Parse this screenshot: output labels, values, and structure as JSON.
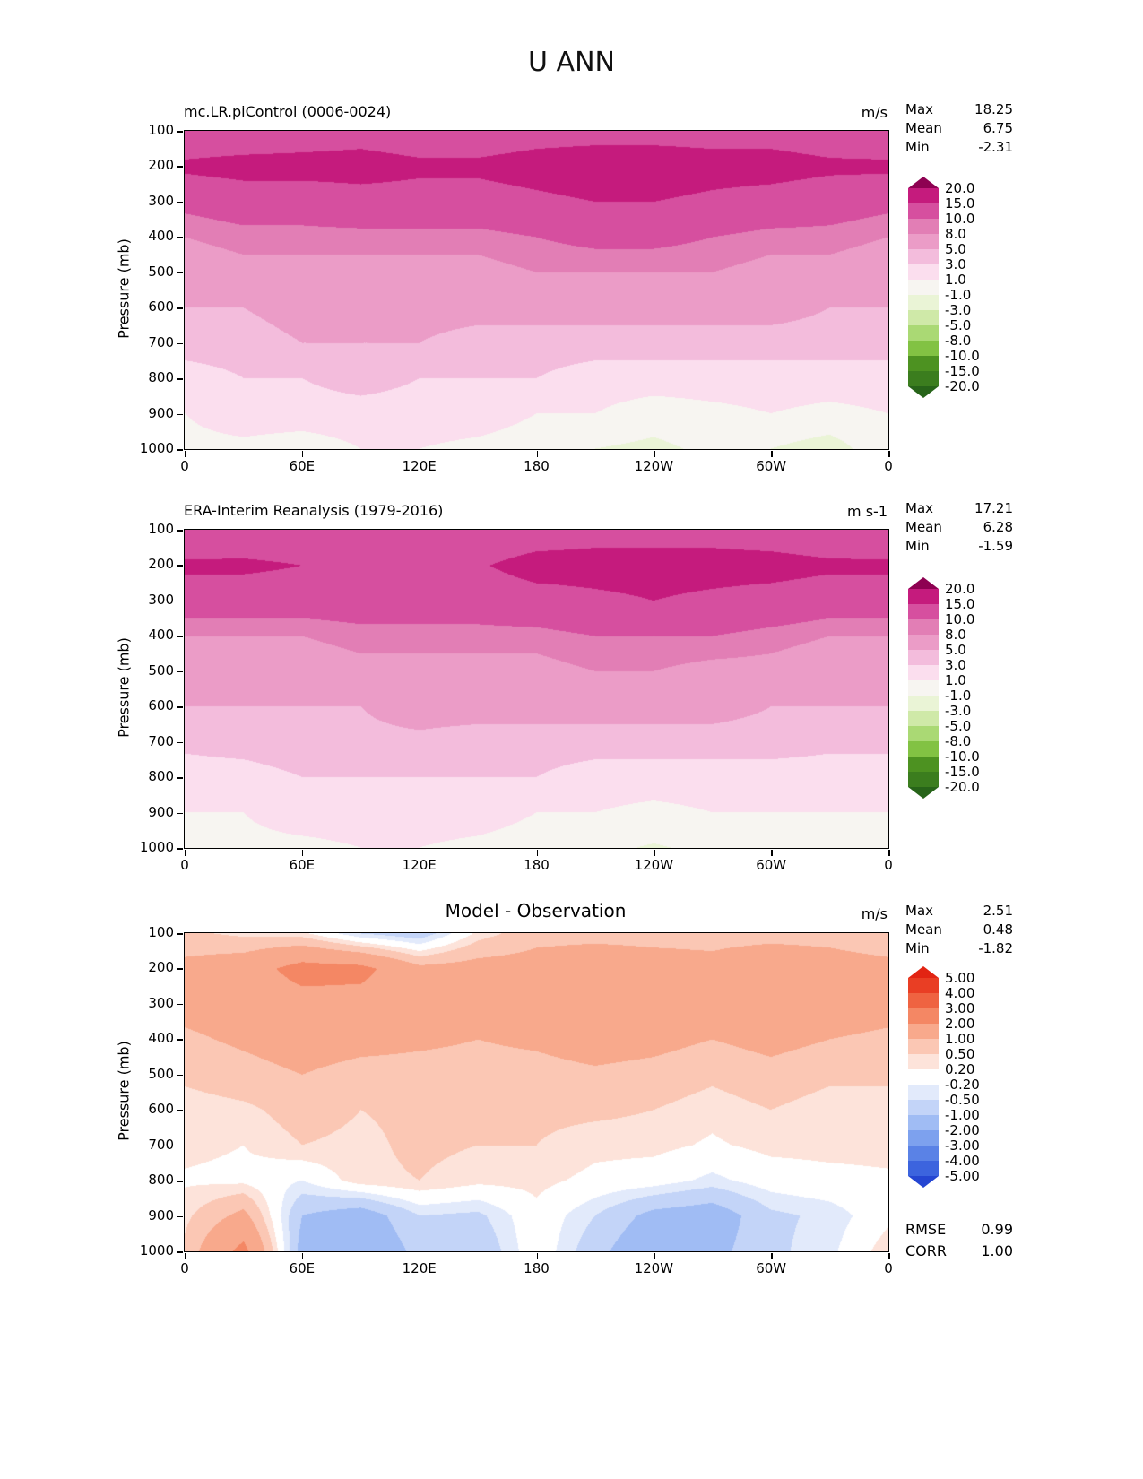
{
  "title": "U ANN",
  "chart_data": {
    "type": "heatmap",
    "subtype": "filled-contour-pressure-longitude",
    "xlabel": "",
    "ylabel": "Pressure (mb)",
    "x_ticks": [
      "0",
      "60E",
      "120E",
      "180",
      "120W",
      "60W",
      "0"
    ],
    "y_ticks": [
      "100",
      "200",
      "300",
      "400",
      "500",
      "600",
      "700",
      "800",
      "900",
      "1000"
    ],
    "lons": [
      0,
      30,
      60,
      90,
      120,
      150,
      180,
      210,
      240,
      270,
      300,
      330,
      360
    ],
    "pressures": [
      100,
      200,
      300,
      400,
      500,
      600,
      700,
      800,
      900,
      1000
    ],
    "panels": [
      {
        "title": "mc.LR.piControl (0006-0024)",
        "units": "m/s",
        "stats": [
          {
            "label": "Max",
            "value": "18.25"
          },
          {
            "label": "Mean",
            "value": "6.75"
          },
          {
            "label": "Min",
            "value": "-2.31"
          }
        ],
        "levels": [
          -20,
          -15,
          -10,
          -8,
          -5,
          -3,
          -1,
          1,
          3,
          5,
          8,
          10,
          15,
          20
        ],
        "colors": [
          "#276419",
          "#3b7d1e",
          "#4d9221",
          "#82c243",
          "#aad974",
          "#cfe9a8",
          "#eaf4d6",
          "#f7f5f1",
          "#fbdeee",
          "#f3bcdc",
          "#eb9cc7",
          "#e27eb5",
          "#d64f9f",
          "#c51b7d",
          "#8e0152"
        ],
        "colorbar_labels": [
          "20.0",
          "15.0",
          "10.0",
          "8.0",
          "5.0",
          "3.0",
          "1.0",
          "-1.0",
          "-3.0",
          "-5.0",
          "-8.0",
          "-10.0",
          "-15.0",
          "-20.0"
        ],
        "values": [
          [
            11,
            11,
            12,
            13,
            12,
            12,
            13,
            13,
            13,
            13,
            13,
            12,
            11
          ],
          [
            16,
            17,
            17,
            17,
            16,
            16,
            17,
            18,
            18,
            17,
            17,
            16,
            16
          ],
          [
            11,
            12,
            12,
            13,
            13,
            13,
            14,
            15,
            15,
            14,
            13,
            12,
            11
          ],
          [
            8,
            9,
            9,
            9,
            9,
            9,
            10,
            11,
            11,
            10,
            9,
            9,
            8
          ],
          [
            6,
            7,
            7,
            7,
            7,
            7,
            8,
            8,
            8,
            8,
            7,
            7,
            6
          ],
          [
            5,
            5,
            6,
            6,
            6,
            6,
            6,
            6,
            6,
            6,
            6,
            5,
            5
          ],
          [
            4,
            4,
            5,
            5,
            5,
            4,
            4,
            4,
            4,
            4,
            4,
            4,
            4
          ],
          [
            2,
            3,
            3,
            4,
            3,
            3,
            3,
            2,
            2,
            2,
            2,
            2,
            2
          ],
          [
            1,
            2,
            2,
            2,
            2,
            2,
            1,
            1,
            0,
            0.5,
            1,
            0.5,
            1
          ],
          [
            0.5,
            0.5,
            0,
            1,
            1,
            0.5,
            0,
            -1,
            -1.5,
            -0.5,
            -1,
            -2,
            0.5
          ]
        ]
      },
      {
        "title": "ERA-Interim Reanalysis (1979-2016)",
        "units": "m s-1",
        "stats": [
          {
            "label": "Max",
            "value": "17.21"
          },
          {
            "label": "Mean",
            "value": "6.28"
          },
          {
            "label": "Min",
            "value": "-1.59"
          }
        ],
        "levels": [
          -20,
          -15,
          -10,
          -8,
          -5,
          -3,
          -1,
          1,
          3,
          5,
          8,
          10,
          15,
          20
        ],
        "colors": [
          "#276419",
          "#3b7d1e",
          "#4d9221",
          "#82c243",
          "#aad974",
          "#cfe9a8",
          "#eaf4d6",
          "#f7f5f1",
          "#fbdeee",
          "#f3bcdc",
          "#eb9cc7",
          "#e27eb5",
          "#d64f9f",
          "#c51b7d",
          "#8e0152"
        ],
        "colorbar_labels": [
          "20.0",
          "15.0",
          "10.0",
          "8.0",
          "5.0",
          "3.0",
          "1.0",
          "-1.0",
          "-3.0",
          "-5.0",
          "-8.0",
          "-10.0",
          "-15.0",
          "-20.0"
        ],
        "values": [
          [
            10,
            11,
            11,
            11,
            10,
            11,
            12,
            13,
            13,
            13,
            12,
            11,
            10
          ],
          [
            16,
            16,
            15,
            14,
            13.5,
            14.5,
            17,
            17,
            17,
            17,
            17,
            16,
            16
          ],
          [
            12,
            12,
            12,
            12,
            12,
            12,
            13,
            14,
            15,
            14,
            13,
            12,
            12
          ],
          [
            8,
            8,
            8,
            9,
            9,
            9,
            9,
            10,
            10,
            10,
            9,
            8,
            8
          ],
          [
            6,
            6,
            6,
            7,
            7,
            7,
            7,
            8,
            8,
            7,
            7,
            6,
            6
          ],
          [
            5,
            5,
            5,
            5,
            6,
            6,
            6,
            6,
            6,
            6,
            5,
            5,
            5
          ],
          [
            3.5,
            4,
            4.5,
            4.5,
            4.5,
            4,
            4,
            4,
            4,
            4,
            4,
            3.5,
            3.5
          ],
          [
            2,
            2,
            3,
            3,
            3,
            3,
            3,
            2,
            2,
            2,
            2,
            2,
            2
          ],
          [
            1,
            1,
            2,
            2,
            2,
            2,
            1,
            1,
            0.5,
            1,
            1,
            1,
            1
          ],
          [
            0.5,
            0.5,
            0.5,
            1,
            1,
            0.5,
            0,
            -0.5,
            -1.2,
            -0.5,
            0,
            0,
            0.5
          ]
        ]
      },
      {
        "title": "Model - Observation",
        "units": "m/s",
        "stats": [
          {
            "label": "Max",
            "value": "2.51"
          },
          {
            "label": "Mean",
            "value": "0.48"
          },
          {
            "label": "Min",
            "value": "-1.82"
          }
        ],
        "levels": [
          -5,
          -4,
          -3,
          -2,
          -1,
          -0.5,
          -0.2,
          0.2,
          0.5,
          1,
          2,
          3,
          4,
          5
        ],
        "colors": [
          "#2546d2",
          "#3c64de",
          "#5a82e6",
          "#7da1ee",
          "#a0bcf4",
          "#c3d4f8",
          "#e2eafb",
          "#ffffff",
          "#fde3da",
          "#fbc7b4",
          "#f8a98c",
          "#f48764",
          "#ef6341",
          "#e93e24",
          "#e22413"
        ],
        "colorbar_labels": [
          "5.00",
          "4.00",
          "3.00",
          "2.00",
          "1.00",
          "0.50",
          "0.20",
          "-0.20",
          "-0.50",
          "-1.00",
          "-2.00",
          "-3.00",
          "-4.00",
          "-5.00"
        ],
        "values": [
          [
            0.6,
            0.4,
            0.3,
            -0.5,
            -0.8,
            0.3,
            0.8,
            0.8,
            0.8,
            0.8,
            0.8,
            0.8,
            0.6
          ],
          [
            1.2,
            1.5,
            2.4,
            2.3,
            1.2,
            1.3,
            1.3,
            1.5,
            1.3,
            1.2,
            1.5,
            1.3,
            1.2
          ],
          [
            1.2,
            1.3,
            1.6,
            1.6,
            1.3,
            1.3,
            1.3,
            1.6,
            1.5,
            1.3,
            1.6,
            1.3,
            1.2
          ],
          [
            0.9,
            1.1,
            1.3,
            1.2,
            1.1,
            1,
            1.1,
            1.3,
            1.2,
            1,
            1.2,
            1,
            0.9
          ],
          [
            0.6,
            0.8,
            1,
            0.8,
            0.8,
            0.8,
            0.8,
            0.9,
            0.8,
            0.6,
            0.8,
            0.6,
            0.6
          ],
          [
            0.3,
            0.4,
            0.7,
            0.5,
            0.6,
            0.6,
            0.6,
            0.6,
            0.5,
            0.3,
            0.5,
            0.3,
            0.3
          ],
          [
            0.3,
            0.2,
            0.5,
            0.4,
            0.6,
            0.5,
            0.5,
            0.3,
            0.3,
            0.15,
            0.3,
            0.3,
            0.3
          ],
          [
            0.15,
            0.1,
            -0.2,
            0.4,
            0.5,
            0.3,
            0.3,
            0.1,
            0,
            -0.3,
            0,
            0.1,
            0.15
          ],
          [
            0.4,
            1.2,
            -1,
            -1.4,
            -0.5,
            -0.6,
            0.1,
            -0.5,
            -1.2,
            -1.4,
            -0.6,
            -0.4,
            0.1
          ],
          [
            0.6,
            2.3,
            -1.3,
            -1.7,
            -0.8,
            -0.9,
            0.1,
            -0.8,
            -1.6,
            -1.2,
            -0.6,
            -0.3,
            0.4
          ]
        ]
      }
    ],
    "footer": {
      "rmse_label": "RMSE",
      "rmse": "0.99",
      "corr_label": "CORR",
      "corr": "1.00"
    }
  }
}
